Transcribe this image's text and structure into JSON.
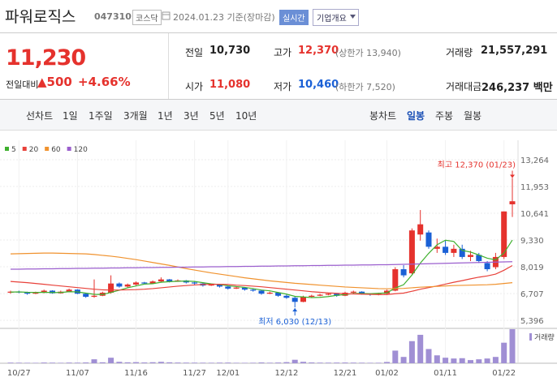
{
  "header": {
    "name": "파워로직스",
    "code": "047310",
    "market": "코스닥",
    "date": "2024.01.23 기준(장마감)",
    "realtime": "실시간",
    "company": "기업개요"
  },
  "price": {
    "current": "11,230",
    "change_label": "전일대비",
    "change": "▲500",
    "rate": "+4.66%"
  },
  "stats": [
    {
      "label": "전일",
      "value": "10,730"
    },
    {
      "label": "고가",
      "value": "12,370",
      "note": "(상한가 13,940)"
    },
    {
      "label": "거래량",
      "value": "21,557,291"
    },
    {
      "label": "시가",
      "value": "11,080"
    },
    {
      "label": "저가",
      "value": "10,460",
      "note": "(하한가 7,520)"
    },
    {
      "label": "거래대금",
      "value": "246,237 백만"
    }
  ],
  "tabs": {
    "line_chart": "선차트",
    "periods": [
      "1일",
      "1주일",
      "3개월",
      "1년",
      "3년",
      "5년",
      "10년"
    ],
    "candle_chart": "봉차트",
    "candle_periods": [
      "일봉",
      "주봉",
      "월봉"
    ]
  },
  "chart_data": {
    "type": "candlestick",
    "categories": [
      null,
      "10/27",
      null,
      null,
      null,
      null,
      null,
      null,
      "11/07",
      null,
      null,
      null,
      null,
      null,
      null,
      "11/16",
      null,
      null,
      null,
      null,
      null,
      null,
      "11/27",
      null,
      null,
      null,
      "12/01",
      null,
      null,
      null,
      null,
      null,
      null,
      "12/12",
      null,
      null,
      null,
      null,
      null,
      null,
      "12/21",
      null,
      null,
      null,
      null,
      "01/02",
      null,
      null,
      null,
      null,
      null,
      null,
      "01/11",
      null,
      null,
      null,
      null,
      null,
      null,
      "01/22",
      null
    ],
    "open": [
      6750,
      6800,
      6780,
      6700,
      6750,
      6850,
      6720,
      6800,
      6900,
      6700,
      6550,
      6600,
      6750,
      7200,
      7050,
      7150,
      7250,
      7200,
      7300,
      7400,
      7300,
      7350,
      7250,
      7200,
      7100,
      7150,
      7050,
      6950,
      7000,
      6900,
      6850,
      6700,
      6750,
      6600,
      6500,
      6300,
      6550,
      6600,
      6650,
      6700,
      6600,
      6750,
      6800,
      6700,
      6650,
      6700,
      6850,
      7900,
      7700,
      9600,
      9700,
      8900,
      9000,
      8700,
      8900,
      8500,
      8600,
      8200,
      8000,
      8500,
      11080
    ],
    "high": [
      6850,
      6850,
      6800,
      6800,
      6900,
      6870,
      6850,
      6950,
      6920,
      6720,
      7400,
      6800,
      7600,
      7250,
      7200,
      7300,
      7280,
      7350,
      7500,
      7420,
      7400,
      7370,
      7300,
      7220,
      7200,
      7170,
      7080,
      7050,
      7020,
      6950,
      6870,
      6800,
      6780,
      6650,
      6550,
      6600,
      6650,
      6700,
      6750,
      6720,
      6800,
      6850,
      6820,
      6720,
      6750,
      6900,
      8000,
      8100,
      9900,
      10800,
      9800,
      9400,
      9300,
      9100,
      9100,
      8800,
      8700,
      8300,
      8700,
      10730,
      12370
    ],
    "low": [
      6700,
      6720,
      6650,
      6680,
      6720,
      6700,
      6700,
      6780,
      6680,
      6500,
      6500,
      6580,
      6700,
      7000,
      7000,
      7100,
      7150,
      7180,
      7250,
      7250,
      7280,
      7200,
      7150,
      7050,
      7080,
      7000,
      6900,
      6930,
      6850,
      6800,
      6650,
      6680,
      6550,
      6450,
      6030,
      6280,
      6500,
      6580,
      6620,
      6550,
      6580,
      6700,
      6650,
      6600,
      6620,
      6680,
      6820,
      7500,
      7650,
      9300,
      8900,
      8700,
      8600,
      8500,
      8400,
      8300,
      8200,
      7800,
      7900,
      8400,
      10460
    ],
    "close": [
      6800,
      6780,
      6700,
      6750,
      6850,
      6720,
      6800,
      6900,
      6700,
      6550,
      6600,
      6750,
      7200,
      7050,
      7150,
      7250,
      7200,
      7300,
      7400,
      7300,
      7350,
      7250,
      7200,
      7100,
      7150,
      7050,
      6950,
      7000,
      6900,
      6850,
      6700,
      6750,
      6600,
      6500,
      6300,
      6550,
      6600,
      6650,
      6700,
      6600,
      6750,
      6800,
      6700,
      6650,
      6700,
      6850,
      7900,
      7600,
      9800,
      10100,
      9000,
      9000,
      8700,
      8900,
      8500,
      8600,
      8300,
      7900,
      8500,
      10730,
      11230
    ],
    "volume": [
      400000,
      350000,
      300000,
      280000,
      450000,
      380000,
      300000,
      420000,
      380000,
      500000,
      2500000,
      600000,
      3500000,
      900000,
      600000,
      700000,
      500000,
      650000,
      900000,
      600000,
      450000,
      400000,
      380000,
      350000,
      330000,
      400000,
      420000,
      300000,
      280000,
      320000,
      500000,
      350000,
      450000,
      700000,
      2200000,
      900000,
      500000,
      400000,
      380000,
      420000,
      450000,
      400000,
      350000,
      300000,
      320000,
      800000,
      8000000,
      4000000,
      14000000,
      18000000,
      9000000,
      5000000,
      3500000,
      3000000,
      3200000,
      2000000,
      2500000,
      3000000,
      4000000,
      13000000,
      21557291
    ],
    "up_color": "#e5322d",
    "down_color": "#1a60d6",
    "volume_color": "#a08fd4",
    "volume_label": "거래량",
    "series": [
      {
        "name": "5",
        "color": "#3fb02e",
        "values": [
          6780,
          6790,
          6770,
          6760,
          6770,
          6760,
          6760,
          6800,
          6790,
          6730,
          6670,
          6660,
          6760,
          6870,
          6990,
          7080,
          7170,
          7190,
          7260,
          7290,
          7310,
          7320,
          7300,
          7240,
          7180,
          7150,
          7090,
          7050,
          7010,
          6950,
          6880,
          6840,
          6760,
          6680,
          6570,
          6540,
          6510,
          6520,
          6560,
          6620,
          6660,
          6710,
          6710,
          6700,
          6720,
          6740,
          6980,
          7140,
          7620,
          8200,
          8680,
          9100,
          9320,
          9260,
          8820,
          8740,
          8600,
          8440,
          8360,
          8690,
          9330
        ]
      },
      {
        "name": "20",
        "color": "#e8413a",
        "values": [
          7300,
          7270,
          7240,
          7200,
          7160,
          7120,
          7080,
          7040,
          7000,
          6960,
          6920,
          6890,
          6880,
          6880,
          6890,
          6900,
          6920,
          6950,
          6990,
          7030,
          7070,
          7100,
          7130,
          7150,
          7160,
          7160,
          7150,
          7120,
          7100,
          7070,
          7040,
          7000,
          6960,
          6920,
          6880,
          6840,
          6800,
          6770,
          6740,
          6720,
          6700,
          6690,
          6680,
          6670,
          6660,
          6660,
          6700,
          6730,
          6820,
          6920,
          7000,
          7080,
          7170,
          7260,
          7340,
          7430,
          7510,
          7570,
          7660,
          7850,
          8080
        ]
      },
      {
        "name": "60",
        "color": "#f0922e",
        "values": [
          8650,
          8660,
          8670,
          8680,
          8690,
          8690,
          8680,
          8670,
          8660,
          8650,
          8620,
          8580,
          8540,
          8490,
          8430,
          8370,
          8300,
          8230,
          8160,
          8090,
          8010,
          7930,
          7860,
          7790,
          7720,
          7660,
          7600,
          7540,
          7480,
          7430,
          7380,
          7330,
          7290,
          7250,
          7210,
          7180,
          7150,
          7120,
          7090,
          7060,
          7030,
          7010,
          6990,
          6970,
          6950,
          6940,
          6950,
          6960,
          6990,
          7020,
          7040,
          7060,
          7080,
          7100,
          7110,
          7120,
          7130,
          7140,
          7160,
          7200,
          7240
        ]
      },
      {
        "name": "120",
        "color": "#9b5fce",
        "values": [
          7900,
          7900,
          7910,
          7910,
          7920,
          7920,
          7930,
          7930,
          7940,
          7940,
          7950,
          7950,
          7960,
          7960,
          7970,
          7970,
          7980,
          7980,
          7990,
          7990,
          8000,
          8000,
          8010,
          8010,
          8020,
          8020,
          8030,
          8030,
          8040,
          8040,
          8050,
          8050,
          8060,
          8060,
          8070,
          8070,
          8080,
          8080,
          8090,
          8090,
          8100,
          8100,
          8110,
          8110,
          8120,
          8120,
          8130,
          8140,
          8150,
          8160,
          8170,
          8180,
          8190,
          8200,
          8210,
          8220,
          8230,
          8240,
          8250,
          8260,
          8270
        ]
      }
    ],
    "ylim": [
      5200,
      13820
    ],
    "yticks": [
      {
        "value": 5396,
        "label": "5,396"
      },
      {
        "value": 6707,
        "label": "6,707"
      },
      {
        "value": 8019,
        "label": "8,019"
      },
      {
        "value": 9330,
        "label": "9,330"
      },
      {
        "value": 10641,
        "label": "10,641"
      },
      {
        "value": 11953,
        "label": "11,953"
      },
      {
        "value": 13264,
        "label": "13,264"
      }
    ],
    "grid": true,
    "annotations": [
      {
        "text": "최고 12,370 (01/23)",
        "index": 60,
        "at": "high"
      },
      {
        "text": "최저 6,030 (12/13)",
        "index": 34,
        "at": "low"
      }
    ]
  }
}
